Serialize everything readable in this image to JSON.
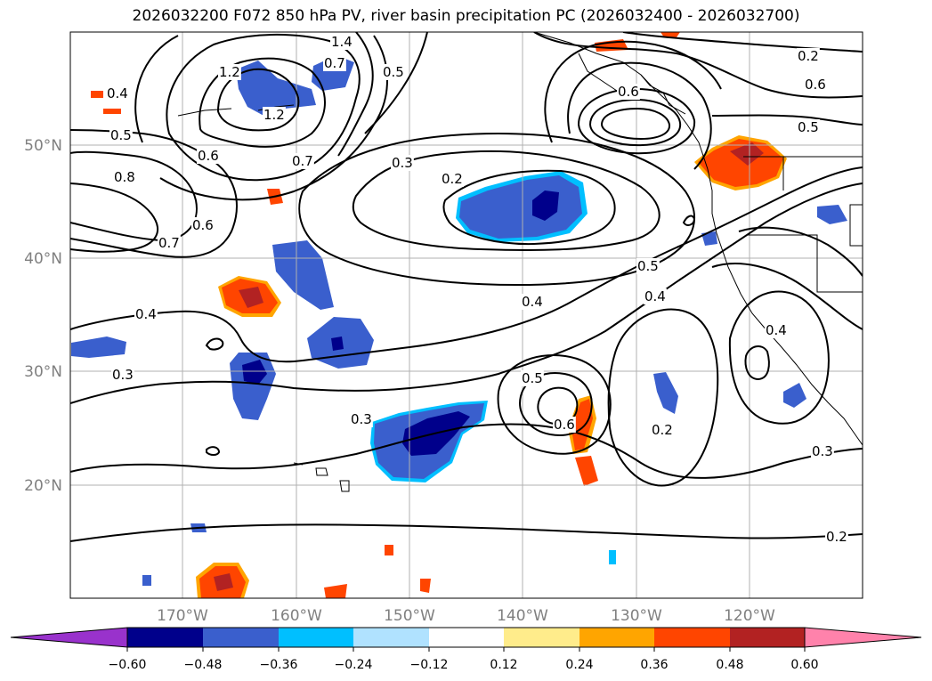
{
  "title": "2026032200 F072 850 hPa PV, river basin precipitation PC (2026032400 - 2026032700)",
  "map": {
    "lon_labels": [
      "170°W",
      "160°W",
      "150°W",
      "140°W",
      "130°W",
      "120°W"
    ],
    "lat_labels": [
      "50°N",
      "40°N",
      "30°N",
      "20°N"
    ],
    "contour_labels": [
      "1.4",
      "1.2",
      "1.2",
      "0.4",
      "0.5",
      "0.6",
      "0.7",
      "0.8",
      "0.7",
      "0.6",
      "0.3",
      "0.2",
      "0.4",
      "0.4",
      "0.3",
      "0.3",
      "0.6",
      "0.7",
      "0.6",
      "0.5",
      "0.5",
      "0.4",
      "0.5",
      "0.6",
      "0.2",
      "0.3",
      "0.2",
      "0.2",
      "0.4",
      "0.5"
    ]
  },
  "colorbar": {
    "ticks": [
      "−0.60",
      "−0.48",
      "−0.36",
      "−0.24",
      "−0.12",
      "0.12",
      "0.24",
      "0.36",
      "0.48",
      "0.60"
    ],
    "colors": [
      "#9932cc",
      "#00008b",
      "#3a5fcd",
      "#00bfff",
      "#b0e2ff",
      "#ffffff",
      "#ffec8b",
      "#ffa500",
      "#ff4500",
      "#b22222",
      "#ff82ab"
    ]
  },
  "colors": {
    "neg_strong": "#00008b",
    "neg_mid": "#3a5fcd",
    "neg_light": "#00bfff",
    "pos_light": "#ffa500",
    "pos_mid": "#ff4500",
    "pos_strong": "#b22222"
  }
}
